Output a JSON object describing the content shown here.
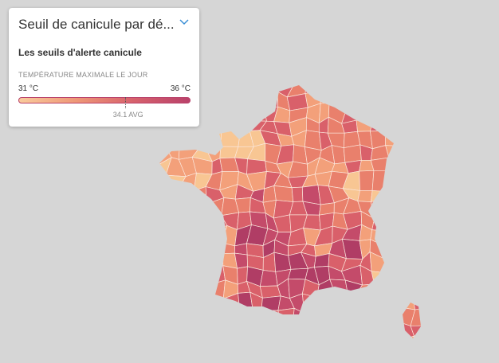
{
  "header": {
    "title": "Seuil de canicule par dé...",
    "subtitle": "Les seuils d'alerte canicule"
  },
  "legend": {
    "label": "TEMPÉRATURE MAXIMALE LE JOUR",
    "min": {
      "value": 31,
      "label": "31 °C"
    },
    "max": {
      "value": 36,
      "label": "36 °C"
    },
    "avg": {
      "value": 34.1,
      "label": "34.1 AVG"
    }
  }
}
